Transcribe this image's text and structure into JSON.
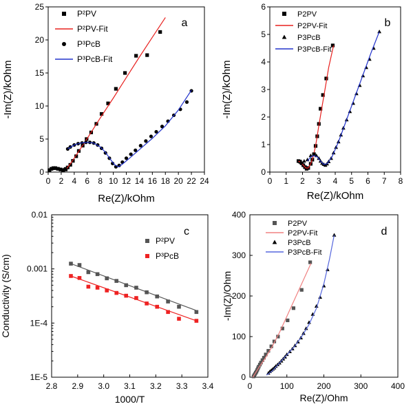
{
  "chart_data": [
    {
      "type": "scatter",
      "panel_label": "a",
      "xlabel": "Re(Z)/kOhm",
      "ylabel": "-Im(Z)/kOhm",
      "xlim": [
        0,
        24
      ],
      "ylim": [
        0,
        25
      ],
      "xticks": [
        "0",
        "2",
        "4",
        "6",
        "8",
        "10",
        "12",
        "14",
        "16",
        "18",
        "20",
        "22",
        "24"
      ],
      "yticks": [
        "0",
        "5",
        "10",
        "15",
        "20",
        "25"
      ],
      "legend": [
        {
          "text": "P²PV",
          "marker": "square",
          "color": "#000000"
        },
        {
          "text": "P²PV-Fit",
          "marker": "line",
          "color": "#e8201e"
        },
        {
          "text": "P³PcB",
          "marker": "circle",
          "color": "#000000"
        },
        {
          "text": "P³PcB-Fit",
          "marker": "line",
          "color": "#2233cc"
        }
      ],
      "series": [
        {
          "name": "P²PV",
          "marker": "square",
          "color": "#000000",
          "x": [
            0.2,
            0.5,
            0.8,
            1.1,
            1.5,
            1.9,
            2.3,
            2.7,
            3.0,
            3.4,
            3.8,
            4.3,
            4.7,
            5.3,
            5.9,
            6.6,
            7.4,
            8.2,
            9.2,
            10.4,
            11.8,
            13.5,
            15.2,
            17.2
          ],
          "y": [
            0.3,
            0.5,
            0.6,
            0.6,
            0.5,
            0.4,
            0.3,
            0.4,
            0.7,
            1.1,
            1.7,
            2.4,
            3.2,
            4.0,
            5.0,
            6.0,
            7.3,
            8.8,
            10.4,
            12.6,
            15.0,
            17.6,
            17.7,
            21.2
          ]
        },
        {
          "name": "P²PV-Fit",
          "marker": "line",
          "color": "#e8201e",
          "x": [
            0.1,
            0.6,
            1.1,
            1.6,
            2.1,
            2.5,
            2.9,
            3.3,
            4.0,
            5.0,
            6.0,
            8.0,
            10.0,
            12.0,
            14.0,
            16.0,
            18.0
          ],
          "y": [
            0.2,
            0.55,
            0.6,
            0.5,
            0.35,
            0.35,
            0.6,
            1.1,
            2.1,
            3.6,
            5.1,
            8.2,
            11.2,
            14.3,
            17.4,
            20.4,
            23.4
          ]
        },
        {
          "name": "P³PcB",
          "marker": "circle",
          "color": "#000000",
          "x": [
            0.2,
            0.6,
            1.0,
            1.4,
            1.8,
            2.2,
            2.6,
            3.0,
            3.4,
            4.0,
            4.6,
            5.2,
            5.8,
            6.4,
            7.0,
            7.6,
            8.2,
            8.8,
            9.4,
            9.9,
            10.4,
            10.9,
            11.4,
            12.0,
            12.7,
            13.4,
            14.2,
            15.0,
            15.8,
            16.6,
            17.5,
            18.4,
            19.3,
            20.3,
            21.3,
            22.0
          ],
          "y": [
            0.3,
            0.5,
            0.6,
            0.5,
            0.4,
            0.3,
            0.5,
            3.5,
            3.8,
            4.1,
            4.3,
            4.4,
            4.5,
            4.5,
            4.4,
            4.1,
            3.6,
            2.9,
            2.1,
            1.3,
            0.8,
            1.0,
            1.5,
            2.1,
            2.7,
            3.3,
            4.0,
            4.7,
            5.4,
            6.1,
            6.9,
            7.7,
            8.6,
            9.5,
            10.6,
            12.3
          ]
        },
        {
          "name": "P³PcB-Fit",
          "marker": "line",
          "color": "#2233cc",
          "x": [
            3.0,
            4.0,
            5.0,
            6.0,
            7.0,
            8.0,
            8.8,
            9.5,
            10.2,
            10.8,
            11.4,
            12.5,
            14.0,
            16.0,
            18.0,
            20.0,
            22.0
          ],
          "y": [
            3.5,
            4.1,
            4.4,
            4.5,
            4.4,
            3.8,
            3.0,
            2.0,
            1.1,
            0.8,
            1.2,
            2.1,
            3.4,
            5.1,
            7.0,
            9.4,
            12.4
          ]
        }
      ]
    },
    {
      "type": "scatter",
      "panel_label": "b",
      "xlabel": "Re(Z)/kOhm",
      "ylabel": "-Im(Z)/kOhm",
      "xlim": [
        0,
        8
      ],
      "ylim": [
        0,
        6
      ],
      "xticks": [
        "0",
        "1",
        "2",
        "3",
        "4",
        "5",
        "6",
        "7",
        "8"
      ],
      "yticks": [
        "0",
        "1",
        "2",
        "3",
        "4",
        "5",
        "6"
      ],
      "legend": [
        {
          "text": "P2PV",
          "marker": "square",
          "color": "#000000"
        },
        {
          "text": "P2PV-Fit",
          "marker": "line",
          "color": "#e8201e"
        },
        {
          "text": "P3PcB",
          "marker": "triangle",
          "color": "#000000"
        },
        {
          "text": "P3PcB-Fit",
          "marker": "line",
          "color": "#2233cc"
        }
      ],
      "series": [
        {
          "name": "P2PV",
          "marker": "square",
          "color": "#000000",
          "x": [
            1.75,
            1.85,
            1.95,
            2.05,
            2.15,
            2.25,
            2.35,
            2.5,
            2.6,
            2.7,
            2.8,
            2.9,
            3.0,
            3.1,
            3.25,
            3.45,
            3.85
          ],
          "y": [
            0.4,
            0.38,
            0.32,
            0.25,
            0.18,
            0.12,
            0.15,
            0.3,
            0.45,
            0.65,
            0.95,
            1.3,
            1.75,
            2.3,
            2.8,
            3.4,
            4.6
          ]
        },
        {
          "name": "P2PV-Fit",
          "marker": "line",
          "color": "#e8201e",
          "x": [
            1.75,
            1.9,
            2.05,
            2.2,
            2.35,
            2.5,
            2.65,
            2.8,
            3.0,
            3.2,
            3.4,
            3.6,
            3.9
          ],
          "y": [
            0.4,
            0.35,
            0.25,
            0.15,
            0.15,
            0.3,
            0.55,
            0.95,
            1.7,
            2.4,
            3.1,
            3.8,
            4.6
          ]
        },
        {
          "name": "P3PcB",
          "marker": "triangle",
          "color": "#000000",
          "x": [
            1.9,
            2.1,
            2.3,
            2.5,
            2.7,
            2.85,
            3.0,
            3.1,
            3.2,
            3.3,
            3.4,
            3.5,
            3.6,
            3.75,
            3.9,
            4.05,
            4.2,
            4.35,
            4.5,
            4.7,
            4.9,
            5.1,
            5.3,
            5.5,
            5.7,
            5.9,
            6.1,
            6.35,
            6.7
          ],
          "y": [
            0.35,
            0.4,
            0.45,
            0.6,
            0.65,
            0.6,
            0.5,
            0.4,
            0.32,
            0.28,
            0.25,
            0.3,
            0.38,
            0.5,
            0.7,
            0.9,
            1.1,
            1.35,
            1.6,
            1.9,
            2.2,
            2.5,
            2.85,
            3.15,
            3.5,
            3.8,
            4.1,
            4.5,
            5.1
          ]
        },
        {
          "name": "P3PcB-Fit",
          "marker": "line",
          "color": "#2233cc",
          "x": [
            2.3,
            2.5,
            2.7,
            2.9,
            3.1,
            3.3,
            3.5,
            3.8,
            4.2,
            4.6,
            5.0,
            5.4,
            5.8,
            6.2,
            6.7
          ],
          "y": [
            0.4,
            0.55,
            0.6,
            0.55,
            0.4,
            0.28,
            0.3,
            0.55,
            1.1,
            1.75,
            2.4,
            3.05,
            3.7,
            4.35,
            5.1
          ]
        }
      ]
    },
    {
      "type": "scatter",
      "panel_label": "c",
      "xlabel": "1000/T",
      "ylabel": "Conductivity (S/cm)",
      "yscale": "log",
      "xlim": [
        2.8,
        3.4
      ],
      "ylim": [
        1e-05,
        0.01
      ],
      "xticks": [
        "2.8",
        "2.9",
        "3.0",
        "3.1",
        "3.2",
        "3.3",
        "3.4"
      ],
      "yticks": [
        "1E-5",
        "1E-4",
        "0.001",
        "0.01"
      ],
      "legend": [
        {
          "text": "P²PV",
          "marker": "square",
          "color": "#555555"
        },
        {
          "text": "P³PcB",
          "marker": "square",
          "color": "#ee2222"
        }
      ],
      "series": [
        {
          "name": "P²PV",
          "marker": "square",
          "color": "#555555",
          "x": [
            2.874,
            2.907,
            2.941,
            2.976,
            3.012,
            3.049,
            3.086,
            3.125,
            3.165,
            3.205,
            3.247,
            3.289,
            3.356
          ],
          "y": [
            0.00125,
            0.00118,
            0.00087,
            0.0008,
            0.00067,
            0.0006,
            0.0005,
            0.00045,
            0.00037,
            0.00031,
            0.00025,
            0.0002,
            0.00016
          ]
        },
        {
          "name": "P³PcB",
          "marker": "square",
          "color": "#ee2222",
          "x": [
            2.874,
            2.907,
            2.941,
            2.976,
            3.012,
            3.049,
            3.086,
            3.125,
            3.165,
            3.205,
            3.247,
            3.289,
            3.356
          ],
          "y": [
            0.00074,
            0.00068,
            0.00047,
            0.00045,
            0.0004,
            0.00036,
            0.00032,
            0.00029,
            0.00023,
            0.0002,
            0.00016,
            0.00012,
            0.00011
          ]
        },
        {
          "name": "P²PV-fit",
          "marker": "line",
          "color": "#555555",
          "x": [
            2.874,
            3.356
          ],
          "y": [
            0.00125,
            0.00017
          ]
        },
        {
          "name": "P³PcB-fit",
          "marker": "line",
          "color": "#ee2222",
          "x": [
            2.874,
            3.356
          ],
          "y": [
            0.00074,
            0.00011
          ]
        }
      ]
    },
    {
      "type": "scatter",
      "panel_label": "d",
      "xlabel": "Re(Z)/Ohm",
      "ylabel": "-Im(Z)/Ohm",
      "xlim": [
        0,
        400
      ],
      "ylim": [
        0,
        400
      ],
      "xticks": [
        "0",
        "100",
        "200",
        "300",
        "400"
      ],
      "yticks": [
        "0",
        "100",
        "200",
        "300",
        "400"
      ],
      "legend": [
        {
          "text": "P2PV",
          "marker": "square",
          "color": "#555555"
        },
        {
          "text": "P2PV-Fit",
          "marker": "line",
          "color": "#f08080"
        },
        {
          "text": "P3PcB",
          "marker": "triangle",
          "color": "#000000"
        },
        {
          "text": "P3PcB-Fit",
          "marker": "line",
          "color": "#5566dd"
        }
      ],
      "series": [
        {
          "name": "P2PV",
          "marker": "square",
          "color": "#555555",
          "x": [
            10,
            12,
            14,
            16,
            18,
            20,
            22,
            24,
            27,
            30,
            34,
            38,
            43,
            50,
            58,
            66,
            76,
            88,
            102,
            118,
            140,
            163
          ],
          "y": [
            2,
            5,
            8,
            11,
            14,
            18,
            22,
            26,
            31,
            36,
            42,
            48,
            56,
            65,
            76,
            88,
            100,
            120,
            140,
            170,
            215,
            283
          ]
        },
        {
          "name": "P2PV-Fit",
          "marker": "line",
          "color": "#f08080",
          "x": [
            8,
            15,
            25,
            40,
            60,
            80,
            100,
            120,
            140,
            165
          ],
          "y": [
            0,
            10,
            25,
            45,
            75,
            110,
            150,
            190,
            230,
            280
          ]
        },
        {
          "name": "P3PcB",
          "marker": "triangle",
          "color": "#000000",
          "x": [
            50,
            54,
            58,
            62,
            66,
            70,
            75,
            80,
            85,
            90,
            95,
            100,
            108,
            115,
            122,
            130,
            138,
            145,
            152,
            160,
            170,
            180,
            190,
            200,
            210,
            228
          ],
          "y": [
            10,
            14,
            17,
            20,
            23,
            27,
            31,
            35,
            40,
            45,
            50,
            56,
            63,
            70,
            78,
            87,
            97,
            108,
            120,
            135,
            155,
            175,
            197,
            225,
            265,
            350
          ]
        },
        {
          "name": "P3PcB-Fit",
          "marker": "line",
          "color": "#5566dd",
          "x": [
            45,
            60,
            80,
            100,
            120,
            140,
            160,
            180,
            200,
            215,
            228
          ],
          "y": [
            5,
            15,
            35,
            55,
            75,
            100,
            130,
            170,
            230,
            290,
            350
          ]
        }
      ]
    }
  ]
}
